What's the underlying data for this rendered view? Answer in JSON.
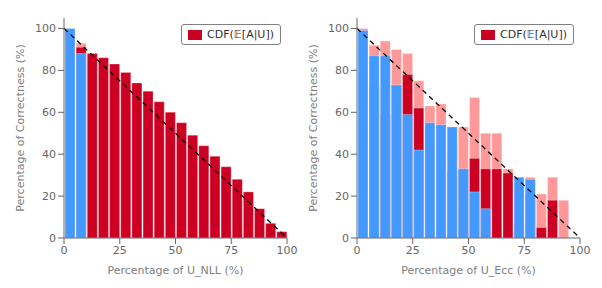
{
  "chart_data": [
    {
      "type": "bar",
      "xlabel": "Percentage of U_NLL (%)",
      "ylabel": "Percentage of Correctness (%)",
      "x": [
        2.5,
        7.5,
        12.5,
        17.5,
        22.5,
        27.5,
        32.5,
        37.5,
        42.5,
        47.5,
        52.5,
        57.5,
        62.5,
        67.5,
        72.5,
        77.5,
        82.5,
        87.5,
        92.5,
        97.5
      ],
      "series": [
        {
          "color": "#FF9999",
          "values": [
            98,
            93,
            88,
            86,
            83,
            79,
            74,
            70,
            65,
            60,
            55,
            49,
            44,
            39,
            34,
            28,
            22,
            14,
            7,
            3
          ]
        },
        {
          "name": "CDF(𝔼[A|U])",
          "color": "#CC0022",
          "values": [
            94,
            91,
            88,
            86,
            83,
            79,
            74,
            70,
            65,
            60,
            55,
            49,
            44,
            39,
            34,
            28,
            22,
            14,
            7,
            3
          ]
        },
        {
          "color": "#4499FF",
          "values": [
            100,
            88,
            0,
            0,
            0,
            0,
            0,
            0,
            0,
            0,
            0,
            0,
            0,
            0,
            0,
            0,
            0,
            0,
            0,
            0
          ]
        },
        {
          "type": "line",
          "x": [
            0,
            100
          ],
          "values": [
            100,
            0
          ],
          "color": "black",
          "line_style": "dashed"
        }
      ],
      "xlim": [
        0,
        100
      ],
      "ylim": [
        0,
        105
      ],
      "xticks": [
        0,
        25,
        50,
        75,
        100
      ],
      "yticks": [
        0,
        20,
        40,
        60,
        80,
        100
      ],
      "legend": "upper right"
    },
    {
      "type": "bar",
      "xlabel": "Percentage of U_Ecc (%)",
      "ylabel": "Percentage of Correctness (%)",
      "x": [
        2.5,
        7.5,
        12.5,
        17.5,
        22.5,
        27.5,
        32.5,
        37.5,
        42.5,
        47.5,
        52.5,
        57.5,
        62.5,
        67.5,
        72.5,
        77.5,
        82.5,
        87.5,
        92.5,
        97.5
      ],
      "series": [
        {
          "color": "#FF9999",
          "values": [
            100,
            92,
            94,
            90,
            88,
            75,
            63,
            64,
            53,
            53,
            67,
            50,
            50,
            33,
            23,
            29,
            21,
            29,
            18,
            0
          ]
        },
        {
          "name": "CDF(𝔼[A|U])",
          "color": "#CC0022",
          "values": [
            82,
            73,
            59,
            73,
            78,
            62,
            41,
            41,
            32,
            33,
            38,
            33,
            33,
            31,
            7,
            21,
            5,
            18,
            0,
            0
          ]
        },
        {
          "color": "#4499FF",
          "values": [
            99,
            87,
            87,
            73,
            59,
            42,
            55,
            54,
            53,
            33,
            22,
            14,
            0,
            0,
            29,
            28,
            0,
            0,
            0,
            0
          ]
        },
        {
          "type": "line",
          "x": [
            0,
            100
          ],
          "values": [
            100,
            0
          ],
          "color": "black",
          "line_style": "dashed"
        }
      ],
      "xlim": [
        0,
        100
      ],
      "ylim": [
        0,
        105
      ],
      "xticks": [
        0,
        25,
        50,
        75,
        100
      ],
      "yticks": [
        0,
        20,
        40,
        60,
        80,
        100
      ],
      "legend": "upper right"
    }
  ]
}
